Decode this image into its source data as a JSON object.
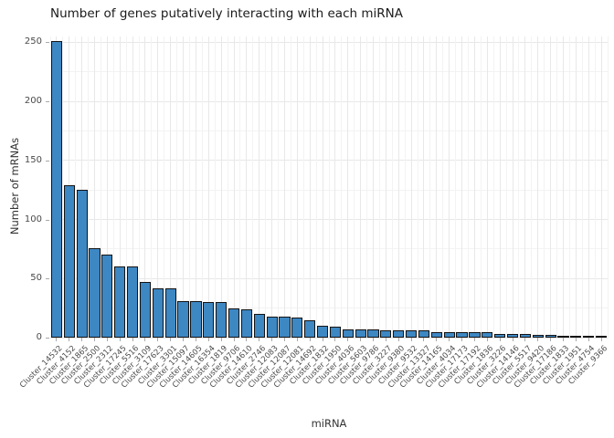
{
  "title": "Number of genes putatively interacting with each miRNA",
  "chart_data": {
    "type": "bar",
    "title": "Number of genes putatively interacting with each miRNA",
    "xlabel": "miRNA",
    "ylabel": "Number of mRNAs",
    "ylim": [
      0,
      255
    ],
    "yticks": [
      0,
      50,
      100,
      150,
      200,
      250
    ],
    "grid": "on",
    "legend": "none",
    "bar_color": "#3d87c3",
    "bar_edge_color": "#141414",
    "categories": [
      "Cluster_14532",
      "Cluster_4152",
      "Cluster_1865",
      "Cluster_2500",
      "Cluster_2312",
      "Cluster_17245",
      "Cluster_5516",
      "Cluster_3109",
      "Cluster_17623",
      "Cluster_3301",
      "Cluster_15097",
      "Cluster_14605",
      "Cluster_16354",
      "Cluster_1819",
      "Cluster_9706",
      "Cluster_14610",
      "Cluster_2746",
      "Cluster_12083",
      "Cluster_12087",
      "Cluster_12081",
      "Cluster_14692",
      "Cluster_1832",
      "Cluster_1950",
      "Cluster_4036",
      "Cluster_5603",
      "Cluster_9786",
      "Cluster_3227",
      "Cluster_9380",
      "Cluster_9532",
      "Cluster_13327",
      "Cluster_14165",
      "Cluster_4034",
      "Cluster_17173",
      "Cluster_17192",
      "Cluster_1836",
      "Cluster_3226",
      "Cluster_14146",
      "Cluster_5517",
      "Cluster_9420",
      "Cluster_17186",
      "Cluster_1833",
      "Cluster_1951",
      "Cluster_4754",
      "Cluster_9366"
    ],
    "values": [
      251,
      129,
      125,
      76,
      70,
      60,
      60,
      47,
      42,
      42,
      31,
      31,
      30,
      30,
      25,
      24,
      20,
      18,
      18,
      17,
      15,
      10,
      9,
      7,
      7,
      7,
      6,
      6,
      6,
      6,
      5,
      5,
      5,
      5,
      5,
      3,
      3,
      3,
      2,
      2,
      1,
      1,
      1,
      1
    ]
  }
}
